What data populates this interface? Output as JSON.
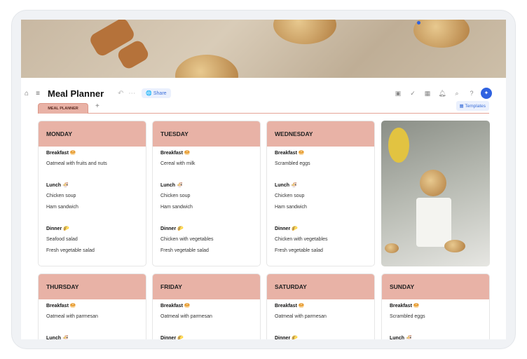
{
  "header": {
    "title": "Meal Planner",
    "share_label": "Share",
    "undo_icon": "undo-icon",
    "more_icon": "more-icon"
  },
  "tabs": {
    "active": "MEAL PLANNER",
    "add": "+",
    "templates_label": "Templates"
  },
  "colors": {
    "accent": "#2f62e0",
    "card_header": "#e8b2a6"
  },
  "days": [
    {
      "name": "MONDAY",
      "meals": [
        {
          "label": "Breakfast",
          "emoji": "🥯",
          "items": [
            "Oatmeal with fruits and nuts"
          ]
        },
        {
          "label": "Lunch",
          "emoji": "🍜",
          "items": [
            "Chicken soup",
            "Ham sandwich"
          ]
        },
        {
          "label": "Dinner",
          "emoji": "🌮",
          "items": [
            "Seafood salad",
            "Fresh vegetable salad"
          ]
        }
      ]
    },
    {
      "name": "TUESDAY",
      "meals": [
        {
          "label": "Breakfast",
          "emoji": "🥯",
          "items": [
            "Cereal with milk"
          ]
        },
        {
          "label": "Lunch",
          "emoji": "🍜",
          "items": [
            "Chicken soup",
            "Ham sandwich"
          ]
        },
        {
          "label": "Dinner",
          "emoji": "🌮",
          "items": [
            "Chicken with vegetables",
            "Fresh vegetable salad"
          ]
        }
      ]
    },
    {
      "name": "WEDNESDAY",
      "meals": [
        {
          "label": "Breakfast",
          "emoji": "🥯",
          "items": [
            "Scrambled eggs"
          ]
        },
        {
          "label": "Lunch",
          "emoji": "🍜",
          "items": [
            "Chicken soup",
            "Ham sandwich"
          ]
        },
        {
          "label": "Dinner",
          "emoji": "🌮",
          "items": [
            "Chicken with vegetables",
            "Fresh vegetable salad"
          ]
        }
      ]
    },
    {
      "name": "THURSDAY",
      "meals": [
        {
          "label": "Breakfast",
          "emoji": "🥯",
          "items": [
            "Oatmeal with parmesan"
          ]
        },
        {
          "label": "Lunch",
          "emoji": "🍜",
          "items": []
        }
      ]
    },
    {
      "name": "FRIDAY",
      "meals": [
        {
          "label": "Breakfast",
          "emoji": "🥯",
          "items": [
            "Oatmeal with parmesan"
          ]
        },
        {
          "label": "Dinner",
          "emoji": "🌮",
          "items": []
        }
      ]
    },
    {
      "name": "SATURDAY",
      "meals": [
        {
          "label": "Breakfast",
          "emoji": "🥯",
          "items": [
            "Oatmeal with parmesan"
          ]
        },
        {
          "label": "Dinner",
          "emoji": "🌮",
          "items": []
        }
      ]
    },
    {
      "name": "SUNDAY",
      "meals": [
        {
          "label": "Breakfast",
          "emoji": "🥯",
          "items": [
            "Scrambled eggs"
          ]
        },
        {
          "label": "Lunch",
          "emoji": "🍜",
          "items": []
        }
      ]
    }
  ]
}
